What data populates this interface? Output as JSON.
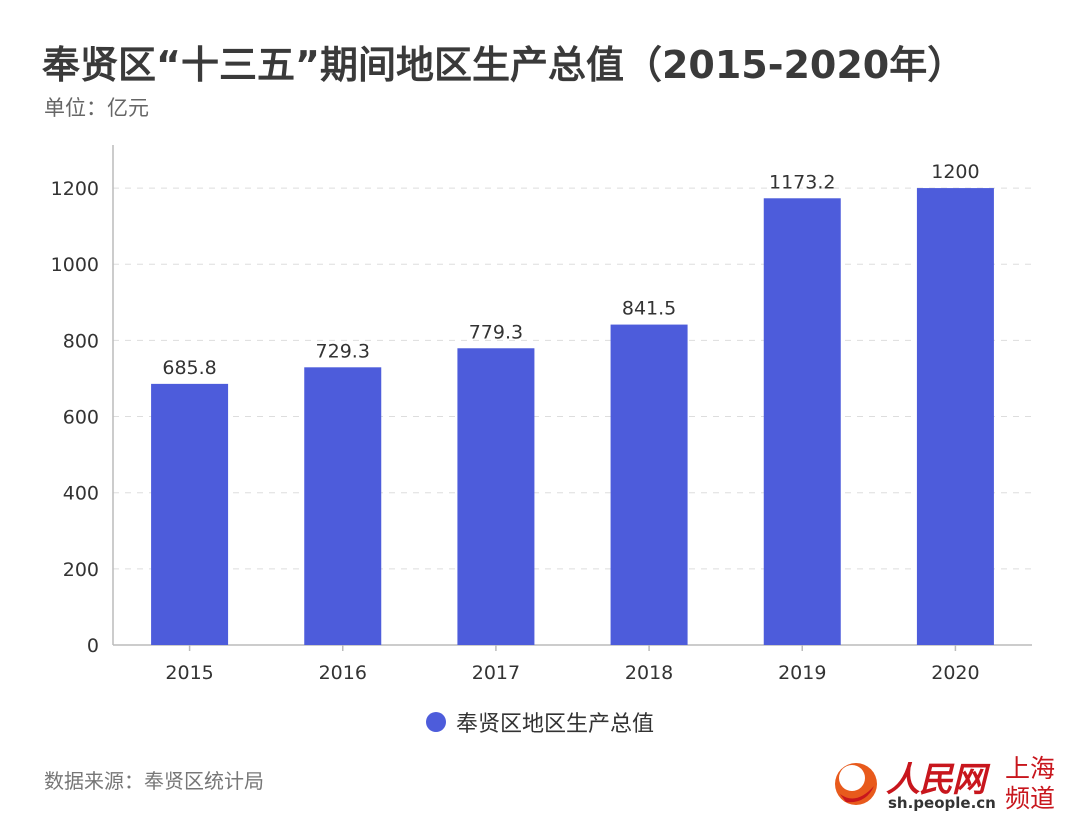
{
  "title": "奉贤区“十三五”期间地区生产总值（2015-2020年）",
  "subtitle": "单位：亿元",
  "source": "数据来源：奉贤区统计局",
  "logo": {
    "name_cn": "人民网",
    "url": "sh.people.cn",
    "channel": "上海频道"
  },
  "colors": {
    "bar": "#4d5cdb",
    "logo_red": "#c8161d"
  },
  "chart_data": {
    "type": "bar",
    "categories": [
      "2015",
      "2016",
      "2017",
      "2018",
      "2019",
      "2020"
    ],
    "series": [
      {
        "name": "奉贤区地区生产总值",
        "values": [
          685.8,
          729.3,
          779.3,
          841.5,
          1173.2,
          1200
        ]
      }
    ],
    "value_labels": [
      "685.8",
      "729.3",
      "779.3",
      "841.5",
      "1173.2",
      "1200"
    ],
    "title": "奉贤区“十三五”期间地区生产总值（2015-2020年）",
    "ylabel": "单位：亿元",
    "ylim": [
      0,
      1300
    ],
    "yticks": [
      0,
      200,
      400,
      600,
      800,
      1000,
      1200
    ],
    "grid": true,
    "legend": "bottom-center"
  }
}
